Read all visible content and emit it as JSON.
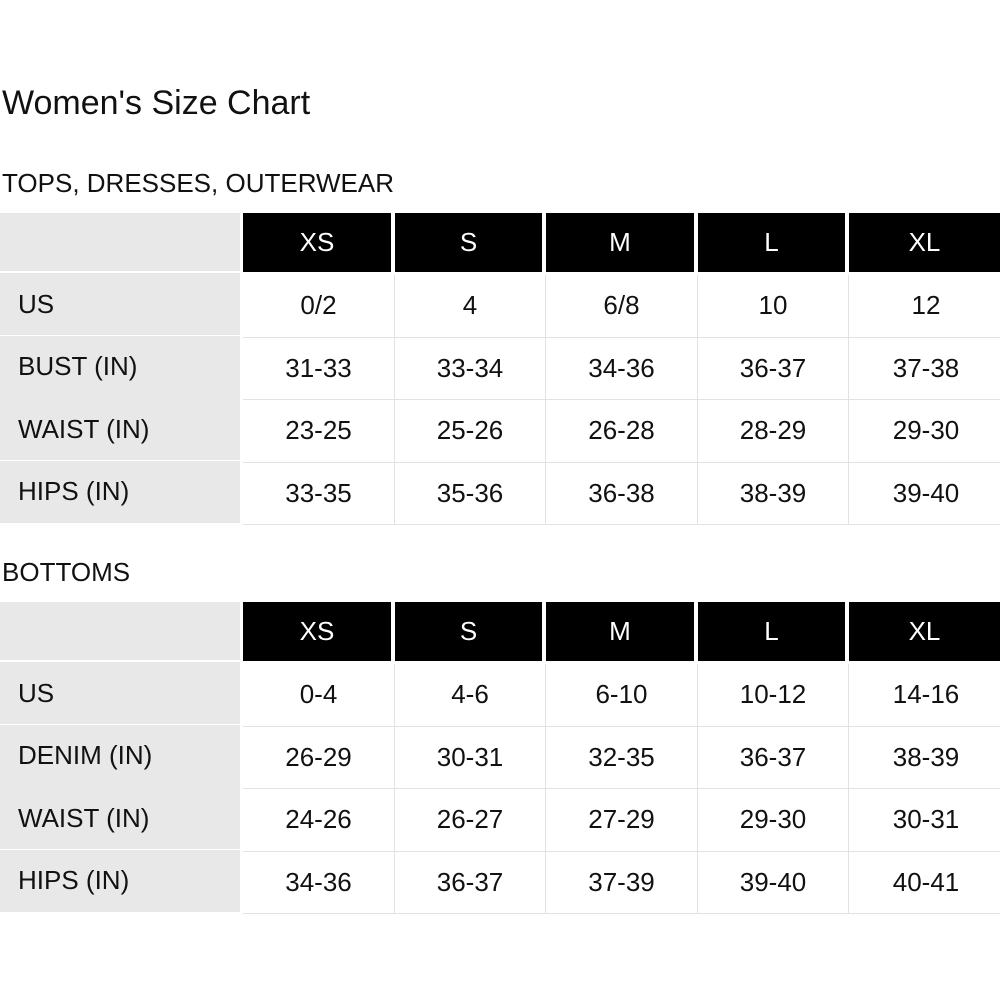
{
  "title": "Women's Size Chart",
  "sections": [
    {
      "title": "TOPS, DRESSES, OUTERWEAR",
      "columns": [
        "XS",
        "S",
        "M",
        "L",
        "XL"
      ],
      "rows": [
        [
          "US",
          "0/2",
          "4",
          "6/8",
          "10",
          "12"
        ],
        [
          "BUST (IN)",
          "31-33",
          "33-34",
          "34-36",
          "36-37",
          "37-38"
        ],
        [
          "WAIST (IN)",
          "23-25",
          "25-26",
          "26-28",
          "28-29",
          "29-30"
        ],
        [
          "HIPS (IN)",
          "33-35",
          "35-36",
          "36-38",
          "38-39",
          "39-40"
        ]
      ]
    },
    {
      "title": "BOTTOMS",
      "columns": [
        "XS",
        "S",
        "M",
        "L",
        "XL"
      ],
      "rows": [
        [
          "US",
          "0-4",
          "4-6",
          "6-10",
          "10-12",
          "14-16"
        ],
        [
          "DENIM (IN)",
          "26-29",
          "30-31",
          "32-35",
          "36-37",
          "38-39"
        ],
        [
          "WAIST (IN)",
          "24-26",
          "26-27",
          "27-29",
          "29-30",
          "30-31"
        ],
        [
          "HIPS (IN)",
          "34-36",
          "36-37",
          "37-39",
          "39-40",
          "40-41"
        ]
      ]
    }
  ]
}
